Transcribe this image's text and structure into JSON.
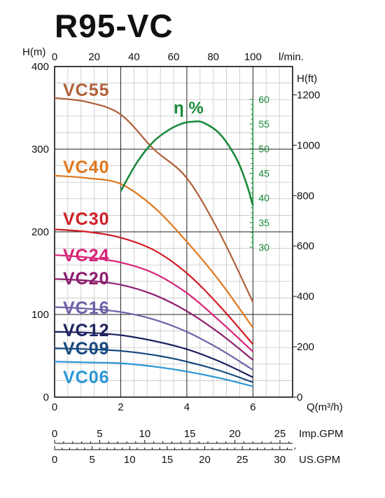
{
  "title": "R95-VC",
  "chart_data": {
    "type": "line",
    "title": "R95-VC",
    "axes": {
      "h_m": {
        "label": "H(m)",
        "range": [
          0,
          400
        ],
        "ticks": [
          "0",
          "100",
          "200",
          "300",
          "400"
        ]
      },
      "h_ft": {
        "label": "H(ft)",
        "range": [
          0,
          1312.3
        ],
        "ticks": [
          "0",
          "200",
          "400",
          "600",
          "800",
          "1000",
          "1200"
        ]
      },
      "q_m3h": {
        "label": "Q(m³/h)",
        "range": [
          0,
          7.2
        ],
        "ticks": [
          "0",
          "2",
          "4",
          "6"
        ]
      },
      "q_lmin": {
        "label": "l/min.",
        "range": [
          0,
          120
        ],
        "ticks": [
          "0",
          "20",
          "40",
          "60",
          "80",
          "100"
        ]
      },
      "imp_gpm": {
        "label": "Imp.GPM",
        "range": [
          0,
          26.4
        ],
        "ticks": [
          "0",
          "5",
          "10",
          "15",
          "20",
          "25"
        ]
      },
      "us_gpm": {
        "label": "US.GPM",
        "range": [
          0,
          31.7
        ],
        "ticks": [
          "0",
          "5",
          "10",
          "15",
          "20",
          "25",
          "30"
        ]
      },
      "efficiency": {
        "label": "η %",
        "range": [
          30,
          60
        ],
        "ticks": [
          "30",
          "35",
          "40",
          "45",
          "50",
          "55",
          "60"
        ]
      }
    },
    "grid": true,
    "series": [
      {
        "name": "VC55",
        "color": "#b0603a",
        "x": [
          0,
          1,
          2,
          3,
          4,
          5,
          6
        ],
        "y": [
          362,
          357,
          342,
          300,
          265,
          198,
          115
        ]
      },
      {
        "name": "VC40",
        "color": "#e0781e",
        "x": [
          0,
          1,
          2,
          3,
          4,
          5,
          6
        ],
        "y": [
          268,
          265,
          258,
          230,
          188,
          140,
          84
        ]
      },
      {
        "name": "VC30",
        "color": "#d01e25",
        "x": [
          0,
          1,
          2,
          3,
          4,
          5,
          6
        ],
        "y": [
          203,
          200,
          193,
          178,
          150,
          110,
          64
        ]
      },
      {
        "name": "VC24",
        "color": "#d8247a",
        "x": [
          0,
          1,
          2,
          3,
          4,
          5,
          6
        ],
        "y": [
          172,
          169,
          163,
          150,
          126,
          92,
          55
        ]
      },
      {
        "name": "VC20",
        "color": "#8c1e6e",
        "x": [
          0,
          1,
          2,
          3,
          4,
          5,
          6
        ],
        "y": [
          143,
          141,
          136,
          124,
          104,
          77,
          45
        ]
      },
      {
        "name": "VC16",
        "color": "#7060a8",
        "x": [
          0,
          1,
          2,
          3,
          4,
          5,
          6
        ],
        "y": [
          109,
          107,
          103,
          94,
          79,
          58,
          33
        ]
      },
      {
        "name": "VC12",
        "color": "#1e2260",
        "x": [
          0,
          1,
          2,
          3,
          4,
          5,
          6
        ],
        "y": [
          79,
          78,
          75,
          68,
          58,
          43,
          24
        ]
      },
      {
        "name": "VC09",
        "color": "#16487e",
        "x": [
          0,
          1,
          2,
          3,
          4,
          5,
          6
        ],
        "y": [
          59,
          58,
          56,
          51,
          43,
          32,
          18
        ]
      },
      {
        "name": "VC06",
        "color": "#2a96d6",
        "x": [
          0,
          1,
          2,
          3,
          4,
          5,
          6
        ],
        "y": [
          43,
          42,
          41,
          37,
          31,
          23,
          13
        ]
      }
    ],
    "efficiency_curve": {
      "name": "η %",
      "color": "#1a8a3a",
      "x": [
        2.0,
        2.5,
        3.0,
        3.5,
        3.9,
        4.2,
        4.5,
        5.0,
        5.5,
        5.8,
        6.0
      ],
      "y": [
        41.4,
        47.3,
        51.5,
        54.0,
        55.2,
        55.5,
        55.3,
        53.0,
        48.0,
        43.0,
        38.5
      ]
    }
  }
}
